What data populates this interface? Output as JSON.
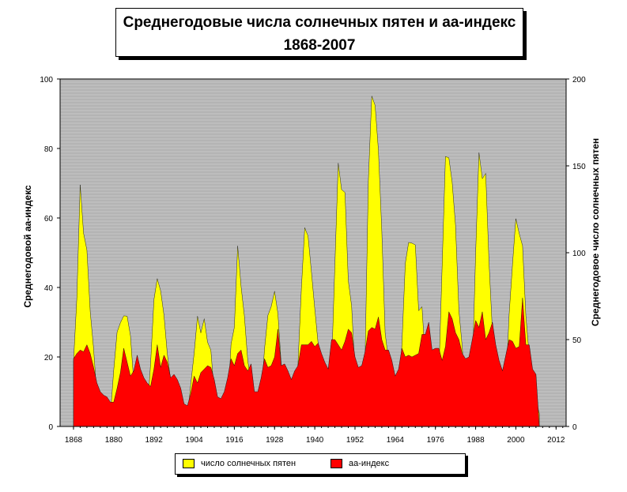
{
  "title": {
    "line1": "Среднегодовые числа солнечных пятен и аа-индекс",
    "line2": "1868-2007"
  },
  "colors": {
    "sunspots": "#ffff00",
    "aa": "#ff0000",
    "plot_bg": "#b4b4b4",
    "grid": "#d8d8d8"
  },
  "legend": {
    "sunspots": "число солнечных пятен",
    "aa": "аа-индекс"
  },
  "chart_data": {
    "type": "area",
    "title": "Среднегодовые числа солнечных пятен и аа-индекс 1868-2007",
    "xlabel": "",
    "ylabel_left": "Среднегодовой аа-индекс",
    "ylabel_right": "Среднегодовое число солнечных пятен",
    "xlim": [
      1864,
      2015
    ],
    "ylim_left": [
      0,
      100
    ],
    "ylim_right": [
      0,
      200
    ],
    "x_ticks": [
      "1868",
      "1880",
      "1892",
      "1904",
      "1916",
      "1928",
      "1940",
      "1952",
      "1964",
      "1976",
      "1988",
      "2000",
      "2012"
    ],
    "y_ticks_left": [
      "0",
      "20",
      "40",
      "60",
      "80",
      "100"
    ],
    "y_ticks_right": [
      "0",
      "50",
      "100",
      "150",
      "200"
    ],
    "grid": true,
    "legend_position": "bottom",
    "series": [
      {
        "name": "число солнечных пятен",
        "axis": "right",
        "color": "#ffff00",
        "x": [
          1868,
          1869,
          1870,
          1871,
          1872,
          1873,
          1874,
          1875,
          1876,
          1877,
          1878,
          1879,
          1880,
          1881,
          1882,
          1883,
          1884,
          1885,
          1886,
          1887,
          1888,
          1889,
          1890,
          1891,
          1892,
          1893,
          1894,
          1895,
          1896,
          1897,
          1898,
          1899,
          1900,
          1901,
          1902,
          1903,
          1904,
          1905,
          1906,
          1907,
          1908,
          1909,
          1910,
          1911,
          1912,
          1913,
          1914,
          1915,
          1916,
          1917,
          1918,
          1919,
          1920,
          1921,
          1922,
          1923,
          1924,
          1925,
          1926,
          1927,
          1928,
          1929,
          1930,
          1931,
          1932,
          1933,
          1934,
          1935,
          1936,
          1937,
          1938,
          1939,
          1940,
          1941,
          1942,
          1943,
          1944,
          1945,
          1946,
          1947,
          1948,
          1949,
          1950,
          1951,
          1952,
          1953,
          1954,
          1955,
          1956,
          1957,
          1958,
          1959,
          1960,
          1961,
          1962,
          1963,
          1964,
          1965,
          1966,
          1967,
          1968,
          1969,
          1970,
          1971,
          1972,
          1973,
          1974,
          1975,
          1976,
          1977,
          1978,
          1979,
          1980,
          1981,
          1982,
          1983,
          1984,
          1985,
          1986,
          1987,
          1988,
          1989,
          1990,
          1991,
          1992,
          1993,
          1994,
          1995,
          1996,
          1997,
          1998,
          1999,
          2000,
          2001,
          2002,
          2003,
          2004,
          2005,
          2006,
          2007
        ],
        "values": [
          37.3,
          73.9,
          139.1,
          111.2,
          101.6,
          66.2,
          44.7,
          17.0,
          11.3,
          12.4,
          3.4,
          6.0,
          32.3,
          54.3,
          59.7,
          63.7,
          63.5,
          52.2,
          25.4,
          13.1,
          6.8,
          6.3,
          7.1,
          35.6,
          73.0,
          85.1,
          78.0,
          64.0,
          41.8,
          26.2,
          26.7,
          12.1,
          9.5,
          2.7,
          5.0,
          24.4,
          42.0,
          63.5,
          53.8,
          62.0,
          48.5,
          43.9,
          18.6,
          5.7,
          3.6,
          1.4,
          9.6,
          47.4,
          57.1,
          103.9,
          80.6,
          63.6,
          37.6,
          26.1,
          14.2,
          5.8,
          16.7,
          44.3,
          63.9,
          69.0,
          77.8,
          64.9,
          35.7,
          21.2,
          11.1,
          5.7,
          8.7,
          36.1,
          79.7,
          114.4,
          109.6,
          88.8,
          67.8,
          47.5,
          30.6,
          16.3,
          9.6,
          33.2,
          92.6,
          151.6,
          136.3,
          134.7,
          83.9,
          69.4,
          31.5,
          13.9,
          4.4,
          38.0,
          141.7,
          190.2,
          184.8,
          159.0,
          112.3,
          53.9,
          37.6,
          27.9,
          10.2,
          15.1,
          47.0,
          93.8,
          105.9,
          105.5,
          104.5,
          66.6,
          68.9,
          38.0,
          34.5,
          15.5,
          12.6,
          27.5,
          92.5,
          155.4,
          154.6,
          140.4,
          115.9,
          66.6,
          45.9,
          17.9,
          13.4,
          29.4,
          100.2,
          157.6,
          142.6,
          145.7,
          94.3,
          54.6,
          29.9,
          17.5,
          8.6,
          21.5,
          64.3,
          93.3,
          119.6,
          111.0,
          104.0,
          63.7,
          40.4,
          29.8,
          15.2,
          7.5
        ]
      },
      {
        "name": "аа-индекс",
        "axis": "left",
        "color": "#ff0000",
        "x": [
          1868,
          1869,
          1870,
          1871,
          1872,
          1873,
          1874,
          1875,
          1876,
          1877,
          1878,
          1879,
          1880,
          1881,
          1882,
          1883,
          1884,
          1885,
          1886,
          1887,
          1888,
          1889,
          1890,
          1891,
          1892,
          1893,
          1894,
          1895,
          1896,
          1897,
          1898,
          1899,
          1900,
          1901,
          1902,
          1903,
          1904,
          1905,
          1906,
          1907,
          1908,
          1909,
          1910,
          1911,
          1912,
          1913,
          1914,
          1915,
          1916,
          1917,
          1918,
          1919,
          1920,
          1921,
          1922,
          1923,
          1924,
          1925,
          1926,
          1927,
          1928,
          1929,
          1930,
          1931,
          1932,
          1933,
          1934,
          1935,
          1936,
          1937,
          1938,
          1939,
          1940,
          1941,
          1942,
          1943,
          1944,
          1945,
          1946,
          1947,
          1948,
          1949,
          1950,
          1951,
          1952,
          1953,
          1954,
          1955,
          1956,
          1957,
          1958,
          1959,
          1960,
          1961,
          1962,
          1963,
          1964,
          1965,
          1966,
          1967,
          1968,
          1969,
          1970,
          1971,
          1972,
          1973,
          1974,
          1975,
          1976,
          1977,
          1978,
          1979,
          1980,
          1981,
          1982,
          1983,
          1984,
          1985,
          1986,
          1987,
          1988,
          1989,
          1990,
          1991,
          1992,
          1993,
          1994,
          1995,
          1996,
          1997,
          1998,
          1999,
          2000,
          2001,
          2002,
          2003,
          2004,
          2005,
          2006,
          2007
        ],
        "values": [
          19.5,
          21.0,
          22.0,
          21.5,
          23.5,
          21.0,
          17.0,
          12.5,
          10.0,
          9.0,
          8.5,
          7.0,
          7.0,
          11.0,
          15.5,
          22.5,
          18.5,
          14.5,
          16.0,
          20.5,
          16.5,
          14.0,
          12.5,
          11.5,
          16.5,
          23.5,
          17.0,
          20.5,
          18.5,
          14.0,
          15.0,
          13.5,
          11.0,
          6.5,
          6.0,
          9.5,
          14.5,
          12.5,
          15.5,
          16.5,
          17.5,
          17.0,
          13.5,
          8.5,
          8.0,
          10.0,
          14.0,
          19.5,
          17.5,
          21.0,
          22.0,
          17.5,
          16.0,
          18.0,
          10.0,
          10.0,
          14.0,
          19.5,
          17.0,
          17.5,
          20.0,
          28.0,
          17.5,
          18.0,
          16.0,
          13.5,
          16.0,
          17.5,
          23.5,
          23.5,
          23.5,
          24.5,
          23.0,
          24.0,
          21.0,
          18.5,
          16.5,
          25.0,
          25.0,
          23.5,
          22.0,
          24.5,
          28.0,
          27.0,
          20.0,
          17.0,
          17.5,
          21.5,
          27.5,
          28.5,
          28.0,
          31.5,
          25.0,
          22.0,
          22.0,
          19.0,
          14.5,
          16.5,
          22.5,
          20.0,
          20.5,
          20.0,
          20.5,
          21.0,
          26.5,
          26.5,
          30.0,
          22.0,
          22.5,
          22.5,
          19.0,
          23.0,
          33.0,
          31.0,
          27.0,
          25.0,
          21.0,
          19.5,
          20.0,
          25.0,
          30.5,
          28.5,
          33.0,
          25.0,
          27.0,
          30.0,
          23.5,
          19.0,
          16.0,
          20.5,
          25.0,
          24.5,
          22.5,
          23.0,
          37.0,
          23.5,
          23.5,
          16.5,
          15.0,
          0.0
        ]
      }
    ]
  }
}
